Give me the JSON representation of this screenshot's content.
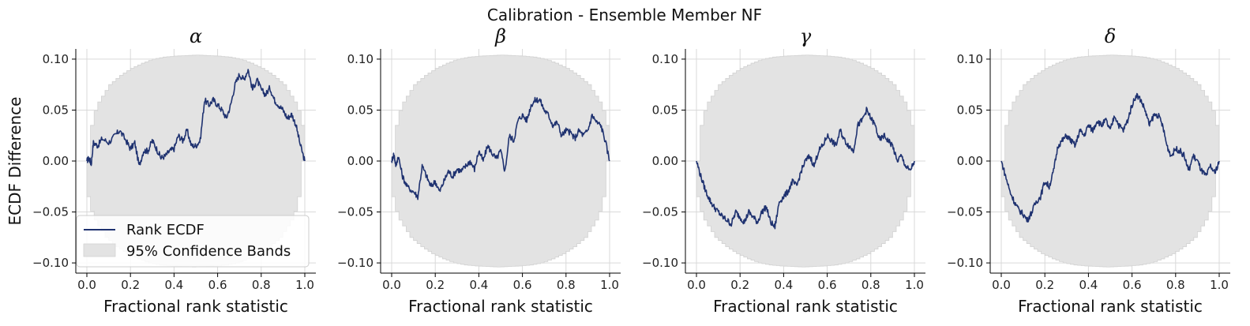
{
  "chart_data": {
    "type": "line",
    "suptitle": "Calibration - Ensemble Member NF",
    "ylabel": "ECDF Difference",
    "xlabel": "Fractional rank statistic",
    "xlim": [
      0,
      1
    ],
    "ylim": [
      -0.11,
      0.11
    ],
    "xticks": [
      "0.0",
      "0.2",
      "0.4",
      "0.6",
      "0.8",
      "1.0"
    ],
    "yticks": [
      "0.10",
      "0.05",
      "0.00",
      "−0.05",
      "−0.10"
    ],
    "xtick_values": [
      0,
      0.2,
      0.4,
      0.6,
      0.8,
      1.0
    ],
    "ytick_values": [
      0.1,
      0.05,
      0,
      -0.05,
      -0.1
    ],
    "legend": {
      "placement": "lower-left",
      "entries": [
        "Rank ECDF",
        "95% Confidence Bands"
      ]
    },
    "colors": {
      "line": "#1f3270",
      "band": "#e3e3e3",
      "grid": "#d9d9d9"
    },
    "band_halfwidth": [
      [
        0,
        0.0
      ],
      [
        0.02,
        0.042
      ],
      [
        0.05,
        0.058
      ],
      [
        0.1,
        0.075
      ],
      [
        0.15,
        0.084
      ],
      [
        0.2,
        0.091
      ],
      [
        0.25,
        0.096
      ],
      [
        0.3,
        0.1
      ],
      [
        0.35,
        0.102
      ],
      [
        0.4,
        0.103
      ],
      [
        0.5,
        0.104
      ],
      [
        0.6,
        0.103
      ],
      [
        0.65,
        0.102
      ],
      [
        0.7,
        0.1
      ],
      [
        0.75,
        0.096
      ],
      [
        0.8,
        0.091
      ],
      [
        0.85,
        0.084
      ],
      [
        0.9,
        0.075
      ],
      [
        0.95,
        0.058
      ],
      [
        0.98,
        0.042
      ],
      [
        1.0,
        0.0
      ]
    ],
    "panels": [
      {
        "title": "α",
        "x": [
          0,
          0.01,
          0.02,
          0.03,
          0.05,
          0.07,
          0.1,
          0.13,
          0.15,
          0.18,
          0.2,
          0.22,
          0.24,
          0.26,
          0.28,
          0.3,
          0.32,
          0.34,
          0.36,
          0.38,
          0.4,
          0.42,
          0.44,
          0.46,
          0.48,
          0.5,
          0.52,
          0.54,
          0.56,
          0.58,
          0.6,
          0.62,
          0.64,
          0.66,
          0.68,
          0.7,
          0.72,
          0.74,
          0.76,
          0.78,
          0.8,
          0.82,
          0.84,
          0.86,
          0.88,
          0.9,
          0.92,
          0.94,
          0.96,
          0.98,
          1.0
        ],
        "y": [
          0.0,
          0.003,
          -0.003,
          0.018,
          0.015,
          0.022,
          0.018,
          0.025,
          0.03,
          0.02,
          0.012,
          0.018,
          -0.005,
          0.01,
          0.01,
          0.02,
          0.012,
          0.003,
          0.005,
          0.01,
          0.012,
          0.025,
          0.02,
          0.03,
          0.015,
          0.015,
          0.02,
          0.06,
          0.055,
          0.06,
          0.055,
          0.05,
          0.042,
          0.055,
          0.075,
          0.085,
          0.08,
          0.09,
          0.07,
          0.08,
          0.07,
          0.065,
          0.072,
          0.06,
          0.055,
          0.05,
          0.042,
          0.046,
          0.035,
          0.015,
          0.0
        ]
      },
      {
        "title": "β",
        "x": [
          0,
          0.01,
          0.02,
          0.03,
          0.05,
          0.07,
          0.1,
          0.12,
          0.14,
          0.16,
          0.18,
          0.2,
          0.22,
          0.24,
          0.26,
          0.28,
          0.3,
          0.32,
          0.34,
          0.36,
          0.38,
          0.4,
          0.42,
          0.44,
          0.46,
          0.48,
          0.5,
          0.52,
          0.54,
          0.56,
          0.58,
          0.6,
          0.62,
          0.64,
          0.66,
          0.68,
          0.7,
          0.72,
          0.74,
          0.76,
          0.78,
          0.8,
          0.82,
          0.84,
          0.86,
          0.88,
          0.9,
          0.92,
          0.94,
          0.96,
          0.98,
          1.0
        ],
        "y": [
          0.0,
          0.007,
          -0.005,
          0.005,
          -0.015,
          -0.025,
          -0.03,
          -0.035,
          -0.005,
          -0.015,
          -0.025,
          -0.02,
          -0.03,
          -0.02,
          -0.01,
          -0.015,
          -0.008,
          -0.01,
          -0.005,
          0.0,
          -0.008,
          0.01,
          0.0,
          0.015,
          0.008,
          0.002,
          0.01,
          -0.01,
          0.025,
          0.02,
          0.04,
          0.045,
          0.04,
          0.055,
          0.06,
          0.06,
          0.05,
          0.045,
          0.035,
          0.038,
          0.025,
          0.03,
          0.028,
          0.022,
          0.03,
          0.025,
          0.03,
          0.045,
          0.038,
          0.035,
          0.02,
          0.0
        ]
      },
      {
        "title": "γ",
        "x": [
          0,
          0.02,
          0.04,
          0.06,
          0.08,
          0.1,
          0.12,
          0.14,
          0.16,
          0.18,
          0.2,
          0.22,
          0.24,
          0.26,
          0.28,
          0.3,
          0.32,
          0.34,
          0.36,
          0.38,
          0.4,
          0.42,
          0.44,
          0.46,
          0.48,
          0.5,
          0.52,
          0.54,
          0.56,
          0.58,
          0.6,
          0.62,
          0.64,
          0.66,
          0.68,
          0.7,
          0.72,
          0.74,
          0.76,
          0.78,
          0.8,
          0.82,
          0.84,
          0.86,
          0.88,
          0.9,
          0.92,
          0.94,
          0.96,
          0.98,
          1.0
        ],
        "y": [
          0.0,
          -0.015,
          -0.028,
          -0.038,
          -0.045,
          -0.05,
          -0.055,
          -0.058,
          -0.062,
          -0.05,
          -0.055,
          -0.06,
          -0.05,
          -0.055,
          -0.06,
          -0.05,
          -0.045,
          -0.06,
          -0.065,
          -0.04,
          -0.035,
          -0.03,
          -0.02,
          -0.025,
          -0.01,
          0.0,
          0.005,
          -0.005,
          0.01,
          0.015,
          0.025,
          0.02,
          0.015,
          0.03,
          0.02,
          0.015,
          0.01,
          0.035,
          0.04,
          0.05,
          0.042,
          0.035,
          0.02,
          0.025,
          0.02,
          0.015,
          0.0,
          0.005,
          -0.005,
          -0.01,
          0.0
        ]
      },
      {
        "title": "δ",
        "x": [
          0,
          0.02,
          0.04,
          0.06,
          0.08,
          0.1,
          0.12,
          0.14,
          0.16,
          0.18,
          0.2,
          0.22,
          0.24,
          0.26,
          0.28,
          0.3,
          0.32,
          0.34,
          0.36,
          0.38,
          0.4,
          0.42,
          0.44,
          0.46,
          0.48,
          0.5,
          0.52,
          0.54,
          0.56,
          0.58,
          0.6,
          0.62,
          0.64,
          0.66,
          0.68,
          0.7,
          0.72,
          0.74,
          0.76,
          0.78,
          0.8,
          0.82,
          0.84,
          0.86,
          0.88,
          0.9,
          0.92,
          0.94,
          0.96,
          0.98,
          1.0
        ],
        "y": [
          0.0,
          -0.015,
          -0.03,
          -0.04,
          -0.048,
          -0.052,
          -0.058,
          -0.05,
          -0.04,
          -0.035,
          -0.02,
          -0.025,
          -0.01,
          0.015,
          0.02,
          0.025,
          0.02,
          0.015,
          0.03,
          0.025,
          0.035,
          0.03,
          0.04,
          0.035,
          0.04,
          0.03,
          0.045,
          0.035,
          0.03,
          0.04,
          0.055,
          0.065,
          0.06,
          0.05,
          0.035,
          0.045,
          0.045,
          0.035,
          0.015,
          0.005,
          0.012,
          0.01,
          0.005,
          -0.01,
          0.005,
          0.0,
          -0.01,
          -0.015,
          -0.005,
          -0.012,
          0.0
        ]
      }
    ]
  }
}
